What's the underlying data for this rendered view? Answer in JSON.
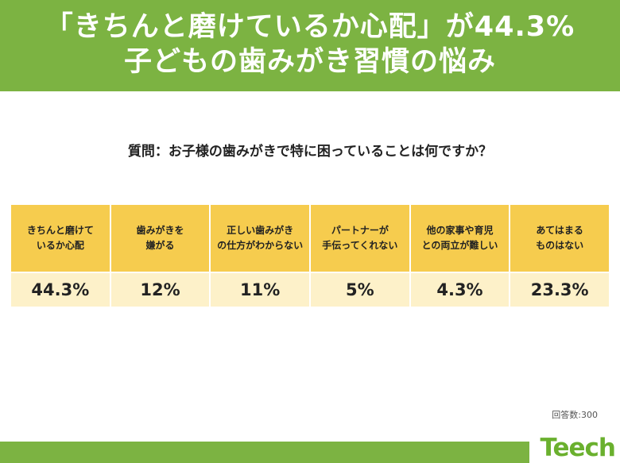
{
  "header": {
    "line1": "「きちんと磨けているか心配」が44.3%",
    "line2": "子どもの歯みがき習慣の悩み"
  },
  "question": "質問：お子様の歯みがきで特に困っていることは何ですか？",
  "chart_data": {
    "type": "table",
    "categories": [
      "きちんと磨けて\nいるか心配",
      "歯みがきを\n嫌がる",
      "正しい歯みがき\nの仕方がわからない",
      "パートナーが\n手伝ってくれない",
      "他の家事や育児\nとの両立が難しい",
      "あてはまる\nものはない"
    ],
    "values": [
      44.3,
      12,
      11,
      5,
      4.3,
      23.3
    ],
    "value_labels": [
      "44.3%",
      "12%",
      "11%",
      "5%",
      "4.3%",
      "23.3%"
    ],
    "unit": "%"
  },
  "respondents": "回答数:300",
  "logo": "Teech",
  "colors": {
    "brand_green": "#7cb342",
    "label_bg": "#f6cc4e",
    "value_bg": "#fdf1c9",
    "logo_green": "#6ab02e"
  }
}
